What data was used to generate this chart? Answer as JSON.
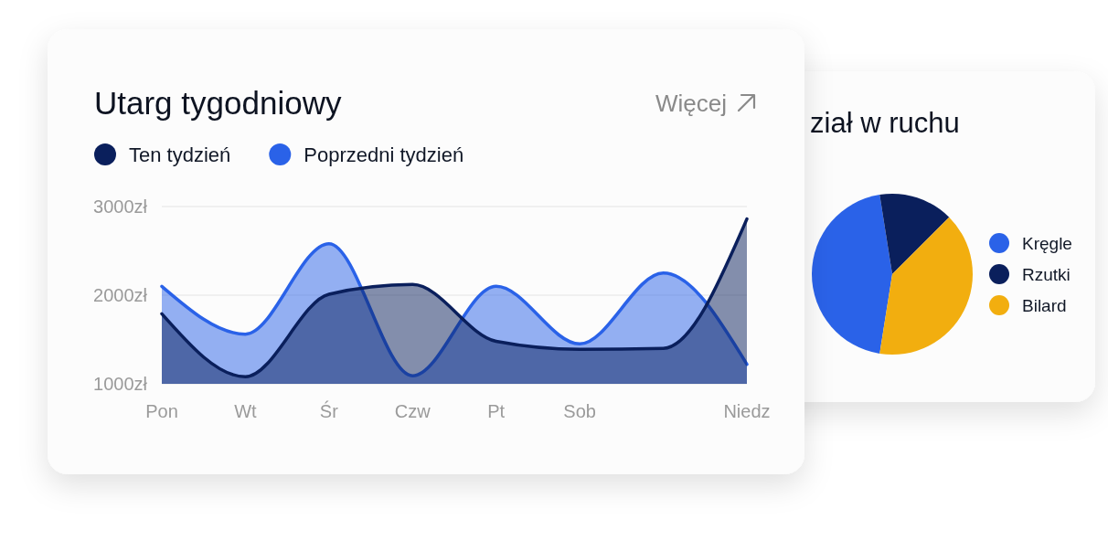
{
  "chart_data": [
    {
      "type": "area",
      "title": "Utarg tygodniowy",
      "annotations": [
        "Więcej"
      ],
      "categories": [
        "Pon",
        "Wt",
        "Śr",
        "Czw",
        "Pt",
        "Sob",
        null,
        "Niedz"
      ],
      "ylim": [
        1000,
        3000
      ],
      "yticks": [
        {
          "value": 1000,
          "label": "1000zł"
        },
        {
          "value": 2000,
          "label": "2000zł"
        },
        {
          "value": 3000,
          "label": "3000zł"
        }
      ],
      "series": [
        {
          "name": "Ten tydzień",
          "color": "#0a1f5c",
          "values": [
            1790,
            1080,
            2010,
            2120,
            1480,
            1390,
            1400,
            2860
          ]
        },
        {
          "name": "Poprzedni tydzień",
          "color": "#2a62e8",
          "values": [
            2100,
            1560,
            2580,
            1090,
            2100,
            1450,
            2250,
            1220
          ]
        }
      ],
      "grid": "y",
      "legend": "top left"
    },
    {
      "type": "pie",
      "title": "ział w ruchu",
      "categories": [
        "Kręgle",
        "Rzutki",
        "Bilard"
      ],
      "values": [
        45,
        15,
        40
      ],
      "colors": [
        "#2a62e8",
        "#0a1f5c",
        "#f2ae0f"
      ],
      "legend": "right"
    }
  ]
}
